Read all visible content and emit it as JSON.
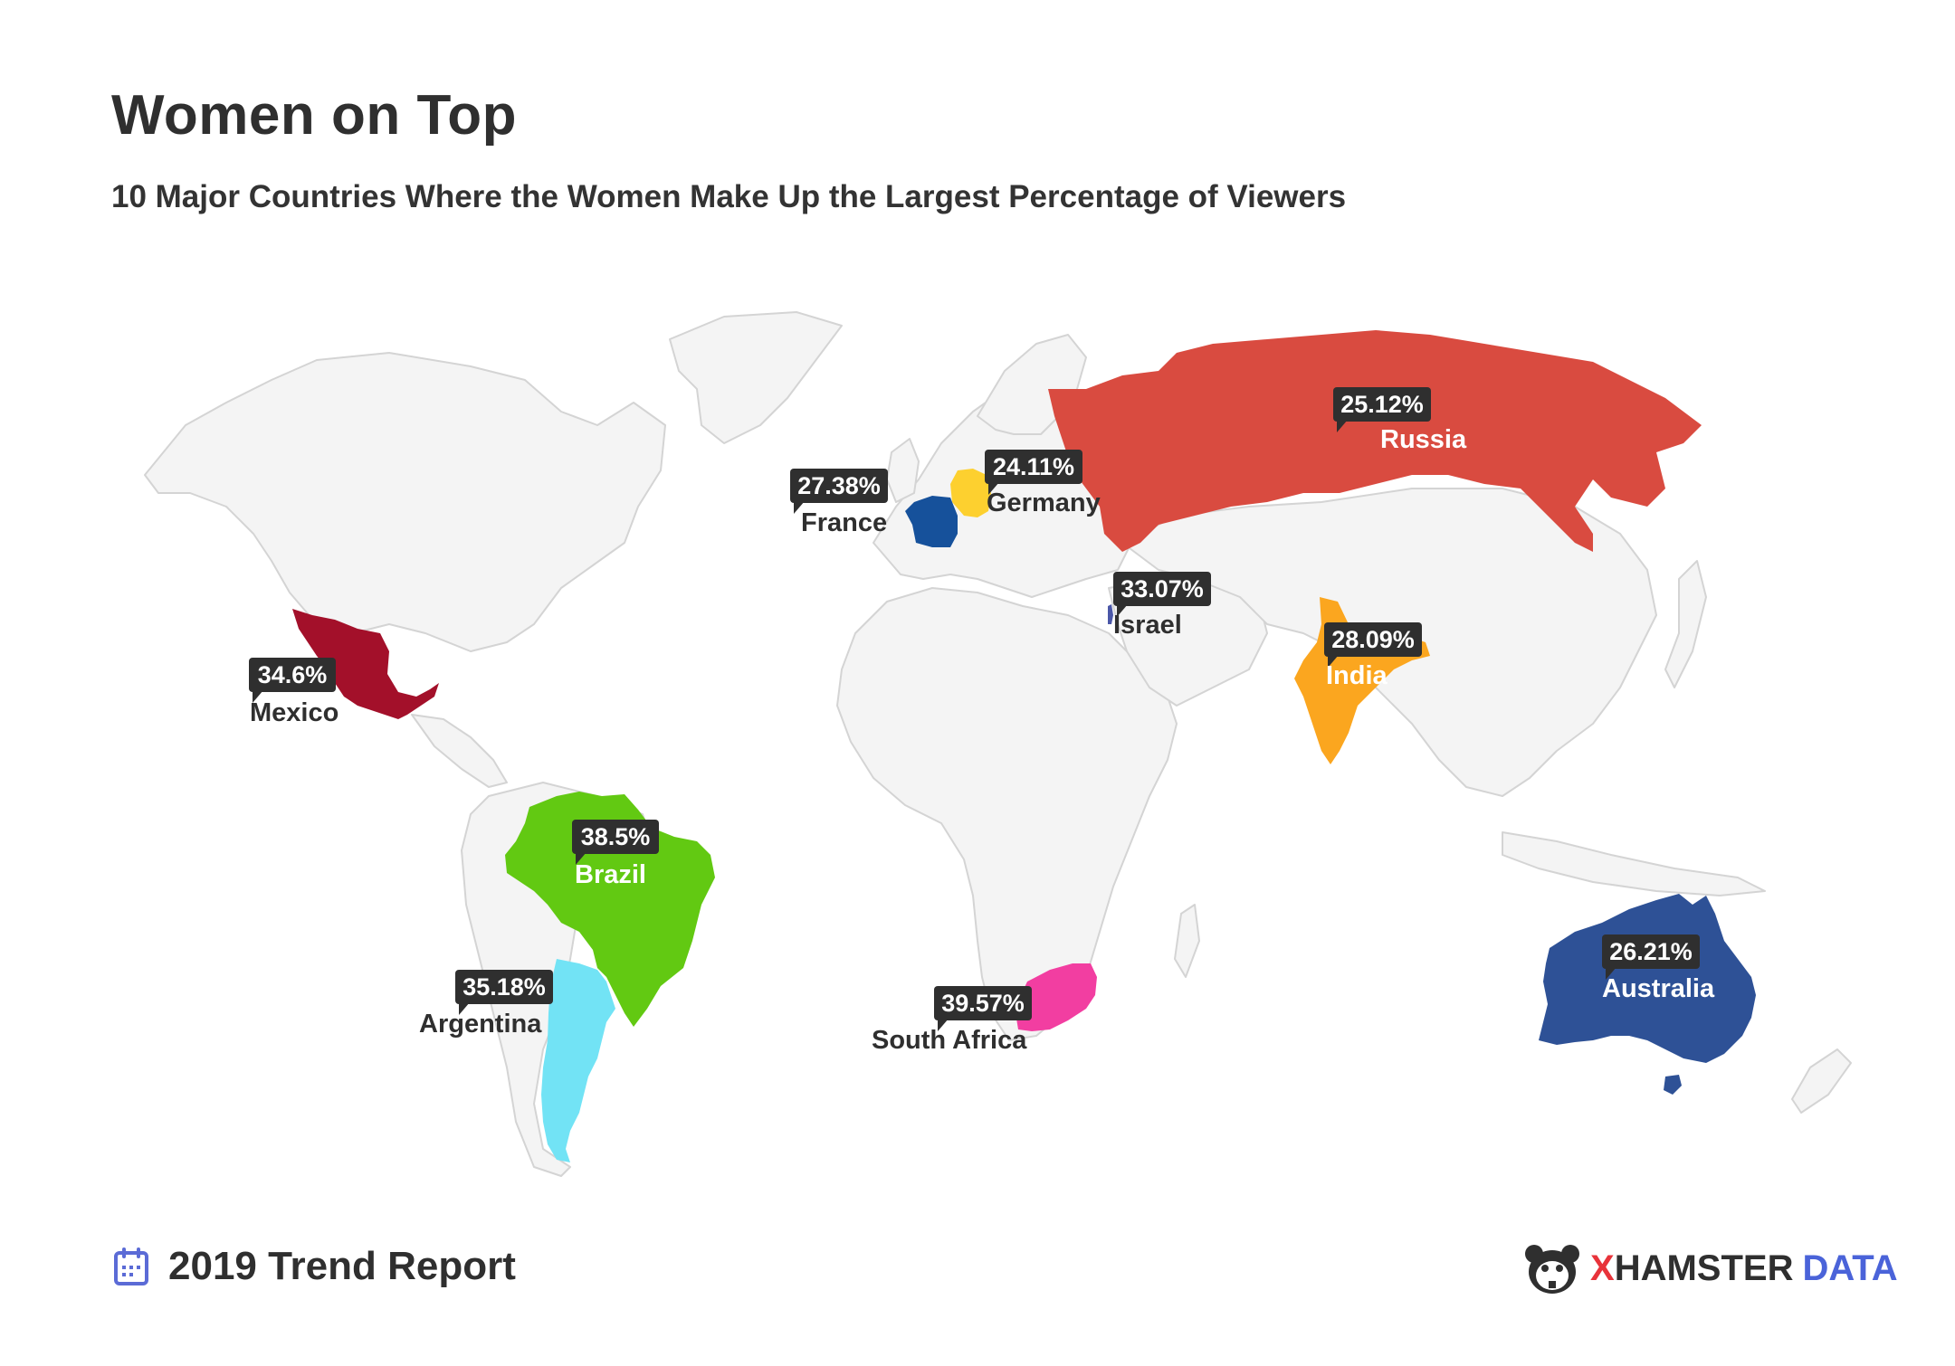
{
  "header": {
    "title": "Women on Top",
    "subtitle": "10 Major Countries Where the Women Make Up the Largest Percentage of Viewers"
  },
  "map": {
    "base_land_color": "#f4f4f4",
    "border_color": "#d4d4d4",
    "countries": [
      {
        "key": "russia",
        "name": "Russia",
        "value": "25.12%",
        "color": "#d94b40",
        "name_color": "#ffffff"
      },
      {
        "key": "germany",
        "name": "Germany",
        "value": "24.11%",
        "color": "#fdd02f",
        "name_color": "#2f2f2f"
      },
      {
        "key": "france",
        "name": "France",
        "value": "27.38%",
        "color": "#16519b",
        "name_color": "#2f2f2f"
      },
      {
        "key": "israel",
        "name": "Israel",
        "value": "33.07%",
        "color": "#4b57a8",
        "name_color": "#2f2f2f"
      },
      {
        "key": "india",
        "name": "India",
        "value": "28.09%",
        "color": "#fba61f",
        "name_color": "#ffffff"
      },
      {
        "key": "mexico",
        "name": "Mexico",
        "value": "34.6%",
        "color": "#a3102a",
        "name_color": "#2f2f2f"
      },
      {
        "key": "brazil",
        "name": "Brazil",
        "value": "38.5%",
        "color": "#62c912",
        "name_color": "#ffffff"
      },
      {
        "key": "argentina",
        "name": "Argentina",
        "value": "35.18%",
        "color": "#72e3f5",
        "name_color": "#2f2f2f"
      },
      {
        "key": "south_africa",
        "name": "South Africa",
        "value": "39.57%",
        "color": "#f23ea1",
        "name_color": "#2f2f2f"
      },
      {
        "key": "australia",
        "name": "Australia",
        "value": "26.21%",
        "color": "#2e5196",
        "name_color": "#ffffff"
      }
    ]
  },
  "footer": {
    "icon": "calendar-icon",
    "report_label": "2019 Trend Report",
    "brand_logo": "hamster-logo-icon",
    "brand_x": "X",
    "brand_hamster": "HAMSTER",
    "brand_data": "DATA"
  }
}
